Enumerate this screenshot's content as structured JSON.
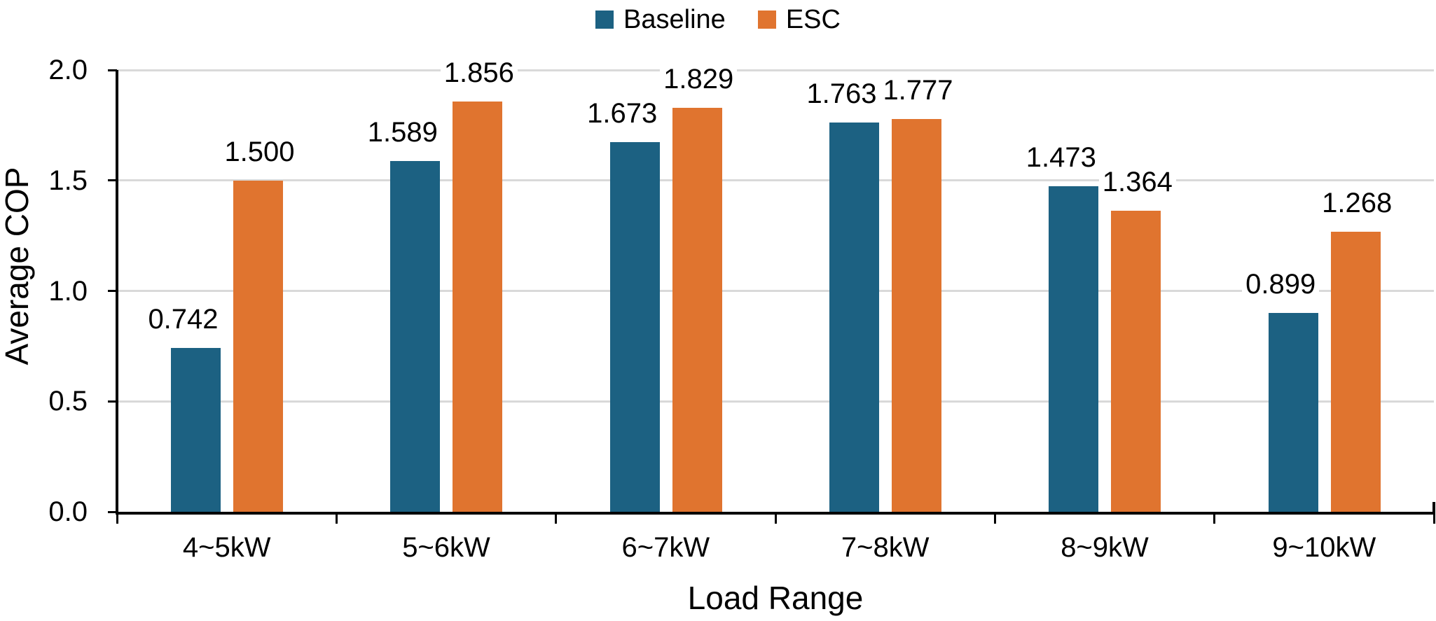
{
  "chart_data": {
    "type": "bar",
    "categories": [
      "4~5kW",
      "5~6kW",
      "6~7kW",
      "7~8kW",
      "8~9kW",
      "9~10kW"
    ],
    "series": [
      {
        "name": "Baseline",
        "color": "#1C6182",
        "values": [
          0.742,
          1.589,
          1.673,
          1.763,
          1.473,
          0.899
        ]
      },
      {
        "name": "ESC",
        "color": "#E0742F",
        "values": [
          1.5,
          1.856,
          1.829,
          1.777,
          1.364,
          1.268
        ]
      }
    ],
    "title": "",
    "xlabel": "Load Range",
    "ylabel": "Average COP",
    "ylim": [
      0,
      2.0
    ],
    "yticks": [
      0.0,
      0.5,
      1.0,
      1.5,
      2.0
    ],
    "ytick_labels": [
      "0.0",
      "0.5",
      "1.0",
      "1.5",
      "2.0"
    ],
    "value_labels": {
      "Baseline": [
        "0.742",
        "1.589",
        "1.673",
        "1.763",
        "1.473",
        "0.899"
      ],
      "ESC": [
        "1.500",
        "1.856",
        "1.829",
        "1.777",
        "1.364",
        "1.268"
      ]
    },
    "grid": "horizontal",
    "legend_position": "top-center",
    "data_labels": true,
    "colors": {
      "gridline": "#D9D9D9",
      "axis": "#000000",
      "text": "#000000",
      "background": "#FFFFFF"
    }
  }
}
